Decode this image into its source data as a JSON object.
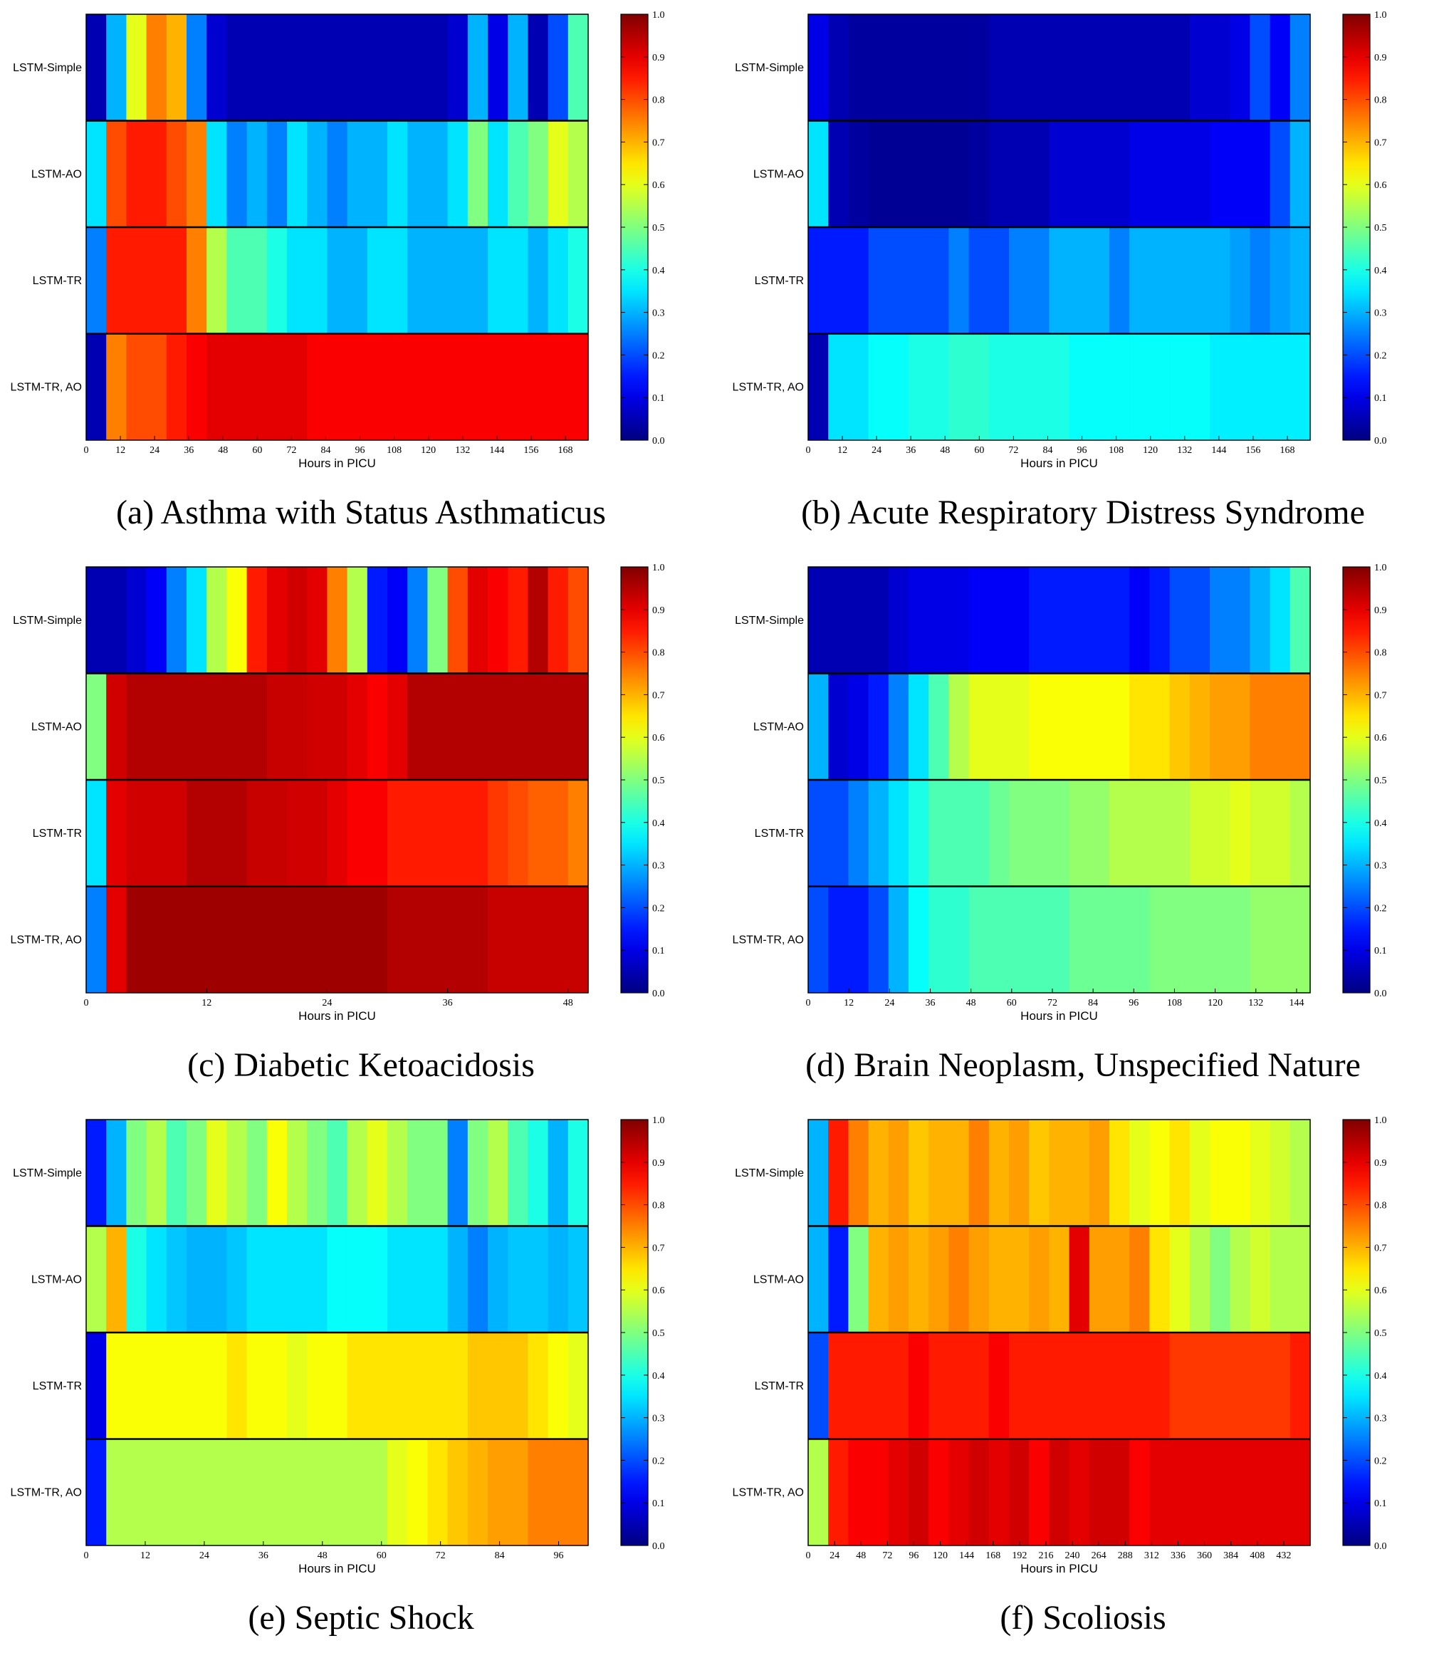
{
  "chart_data": [
    {
      "type": "heatmap",
      "caption": "(a) Asthma with Status Asthmaticus",
      "rows": [
        "LSTM-Simple",
        "LSTM-AO",
        "LSTM-TR",
        "LSTM-TR, AO"
      ],
      "xlabel": "Hours in PICU",
      "xlim": [
        0,
        176
      ],
      "xticks": [
        "0",
        "12",
        "24",
        "36",
        "48",
        "60",
        "72",
        "84",
        "96",
        "108",
        "120",
        "132",
        "144",
        "156",
        "168"
      ],
      "colorbar": {
        "min": 0.0,
        "max": 1.0,
        "ticks": [
          "0.0",
          "0.1",
          "0.2",
          "0.3",
          "0.4",
          "0.5",
          "0.6",
          "0.7",
          "0.8",
          "0.9",
          "1.0"
        ]
      },
      "values": [
        [
          0.05,
          0.3,
          0.6,
          0.75,
          0.7,
          0.25,
          0.08,
          0.05,
          0.05,
          0.05,
          0.05,
          0.05,
          0.05,
          0.05,
          0.05,
          0.05,
          0.05,
          0.05,
          0.08,
          0.3,
          0.1,
          0.3,
          0.05,
          0.2,
          0.45
        ],
        [
          0.35,
          0.8,
          0.85,
          0.85,
          0.8,
          0.75,
          0.35,
          0.25,
          0.3,
          0.25,
          0.35,
          0.3,
          0.25,
          0.3,
          0.3,
          0.35,
          0.3,
          0.3,
          0.35,
          0.5,
          0.35,
          0.45,
          0.5,
          0.6,
          0.55
        ],
        [
          0.25,
          0.85,
          0.85,
          0.85,
          0.85,
          0.75,
          0.55,
          0.45,
          0.45,
          0.4,
          0.35,
          0.35,
          0.3,
          0.3,
          0.35,
          0.35,
          0.3,
          0.3,
          0.3,
          0.3,
          0.35,
          0.35,
          0.3,
          0.35,
          0.4
        ],
        [
          0.05,
          0.75,
          0.8,
          0.8,
          0.85,
          0.88,
          0.9,
          0.9,
          0.9,
          0.9,
          0.9,
          0.88,
          0.88,
          0.88,
          0.88,
          0.88,
          0.88,
          0.88,
          0.88,
          0.88,
          0.88,
          0.88,
          0.88,
          0.88,
          0.88
        ]
      ]
    },
    {
      "type": "heatmap",
      "caption": "(b) Acute Respiratory Distress Syndrome",
      "rows": [
        "LSTM-Simple",
        "LSTM-AO",
        "LSTM-TR",
        "LSTM-TR, AO"
      ],
      "xlabel": "Hours in PICU",
      "xlim": [
        0,
        176
      ],
      "xticks": [
        "0",
        "12",
        "24",
        "36",
        "48",
        "60",
        "72",
        "84",
        "96",
        "108",
        "120",
        "132",
        "144",
        "156",
        "168"
      ],
      "colorbar": {
        "min": 0.0,
        "max": 1.0,
        "ticks": [
          "0.0",
          "0.1",
          "0.2",
          "0.3",
          "0.4",
          "0.5",
          "0.6",
          "0.7",
          "0.8",
          "0.9",
          "1.0"
        ]
      },
      "values": [
        [
          0.1,
          0.05,
          0.03,
          0.03,
          0.03,
          0.03,
          0.03,
          0.03,
          0.03,
          0.05,
          0.05,
          0.05,
          0.05,
          0.05,
          0.05,
          0.05,
          0.05,
          0.05,
          0.05,
          0.08,
          0.08,
          0.1,
          0.2,
          0.12,
          0.25
        ],
        [
          0.35,
          0.05,
          0.03,
          0.02,
          0.02,
          0.02,
          0.02,
          0.02,
          0.03,
          0.05,
          0.05,
          0.05,
          0.08,
          0.08,
          0.08,
          0.08,
          0.1,
          0.1,
          0.1,
          0.1,
          0.12,
          0.12,
          0.12,
          0.2,
          0.3
        ],
        [
          0.15,
          0.15,
          0.15,
          0.2,
          0.2,
          0.2,
          0.2,
          0.25,
          0.2,
          0.2,
          0.25,
          0.25,
          0.3,
          0.3,
          0.3,
          0.25,
          0.3,
          0.3,
          0.3,
          0.3,
          0.3,
          0.28,
          0.25,
          0.28,
          0.3
        ],
        [
          0.05,
          0.35,
          0.35,
          0.38,
          0.38,
          0.4,
          0.4,
          0.42,
          0.42,
          0.4,
          0.4,
          0.4,
          0.4,
          0.38,
          0.38,
          0.38,
          0.38,
          0.38,
          0.38,
          0.38,
          0.36,
          0.36,
          0.36,
          0.36,
          0.36
        ]
      ]
    },
    {
      "type": "heatmap",
      "caption": "(c) Diabetic Ketoacidosis",
      "rows": [
        "LSTM-Simple",
        "LSTM-AO",
        "LSTM-TR",
        "LSTM-TR, AO"
      ],
      "xlabel": "Hours in PICU",
      "xlim": [
        0,
        50
      ],
      "xticks": [
        "0",
        "12",
        "24",
        "36",
        "48"
      ],
      "colorbar": {
        "min": 0.0,
        "max": 1.0,
        "ticks": [
          "0.0",
          "0.1",
          "0.2",
          "0.3",
          "0.4",
          "0.5",
          "0.6",
          "0.7",
          "0.8",
          "0.9",
          "1.0"
        ]
      },
      "values": [
        [
          0.05,
          0.05,
          0.08,
          0.12,
          0.25,
          0.35,
          0.55,
          0.62,
          0.85,
          0.9,
          0.92,
          0.9,
          0.75,
          0.55,
          0.15,
          0.12,
          0.25,
          0.5,
          0.8,
          0.9,
          0.88,
          0.85,
          0.95,
          0.85,
          0.8
        ],
        [
          0.5,
          0.92,
          0.95,
          0.95,
          0.95,
          0.95,
          0.95,
          0.95,
          0.95,
          0.93,
          0.93,
          0.92,
          0.92,
          0.9,
          0.88,
          0.9,
          0.95,
          0.95,
          0.95,
          0.95,
          0.95,
          0.95,
          0.95,
          0.95,
          0.95
        ],
        [
          0.35,
          0.9,
          0.92,
          0.92,
          0.92,
          0.95,
          0.95,
          0.95,
          0.93,
          0.93,
          0.92,
          0.92,
          0.9,
          0.88,
          0.88,
          0.85,
          0.85,
          0.85,
          0.85,
          0.85,
          0.82,
          0.8,
          0.78,
          0.78,
          0.75
        ],
        [
          0.25,
          0.9,
          0.97,
          0.97,
          0.97,
          0.97,
          0.97,
          0.97,
          0.97,
          0.97,
          0.97,
          0.97,
          0.97,
          0.97,
          0.97,
          0.95,
          0.95,
          0.95,
          0.95,
          0.95,
          0.93,
          0.93,
          0.93,
          0.93,
          0.93
        ]
      ]
    },
    {
      "type": "heatmap",
      "caption": "(d) Brain Neoplasm, Unspecified Nature",
      "rows": [
        "LSTM-Simple",
        "LSTM-AO",
        "LSTM-TR",
        "LSTM-TR, AO"
      ],
      "xlabel": "Hours in PICU",
      "xlim": [
        0,
        148
      ],
      "xticks": [
        "0",
        "12",
        "24",
        "36",
        "48",
        "60",
        "72",
        "84",
        "96",
        "108",
        "120",
        "132",
        "144"
      ],
      "colorbar": {
        "min": 0.0,
        "max": 1.0,
        "ticks": [
          "0.0",
          "0.1",
          "0.2",
          "0.3",
          "0.4",
          "0.5",
          "0.6",
          "0.7",
          "0.8",
          "0.9",
          "1.0"
        ]
      },
      "values": [
        [
          0.05,
          0.05,
          0.05,
          0.05,
          0.08,
          0.1,
          0.1,
          0.1,
          0.12,
          0.12,
          0.12,
          0.15,
          0.15,
          0.15,
          0.15,
          0.15,
          0.12,
          0.15,
          0.2,
          0.2,
          0.25,
          0.25,
          0.3,
          0.35,
          0.45
        ],
        [
          0.3,
          0.08,
          0.1,
          0.15,
          0.25,
          0.35,
          0.45,
          0.55,
          0.6,
          0.6,
          0.6,
          0.62,
          0.62,
          0.62,
          0.62,
          0.62,
          0.65,
          0.65,
          0.68,
          0.7,
          0.72,
          0.72,
          0.75,
          0.75,
          0.75
        ],
        [
          0.2,
          0.2,
          0.25,
          0.3,
          0.35,
          0.4,
          0.45,
          0.45,
          0.45,
          0.48,
          0.5,
          0.5,
          0.5,
          0.52,
          0.52,
          0.55,
          0.55,
          0.55,
          0.55,
          0.58,
          0.58,
          0.6,
          0.58,
          0.58,
          0.55
        ],
        [
          0.2,
          0.15,
          0.15,
          0.2,
          0.3,
          0.38,
          0.42,
          0.42,
          0.45,
          0.45,
          0.45,
          0.45,
          0.45,
          0.48,
          0.48,
          0.48,
          0.48,
          0.5,
          0.5,
          0.5,
          0.5,
          0.5,
          0.52,
          0.52,
          0.52
        ]
      ]
    },
    {
      "type": "heatmap",
      "caption": "(e) Septic Shock",
      "rows": [
        "LSTM-Simple",
        "LSTM-AO",
        "LSTM-TR",
        "LSTM-TR, AO"
      ],
      "xlabel": "Hours in PICU",
      "xlim": [
        0,
        102
      ],
      "xticks": [
        "0",
        "12",
        "24",
        "36",
        "48",
        "60",
        "72",
        "84",
        "96"
      ],
      "colorbar": {
        "min": 0.0,
        "max": 1.0,
        "ticks": [
          "0.0",
          "0.1",
          "0.2",
          "0.3",
          "0.4",
          "0.5",
          "0.6",
          "0.7",
          "0.8",
          "0.9",
          "1.0"
        ]
      },
      "values": [
        [
          0.15,
          0.3,
          0.5,
          0.55,
          0.45,
          0.5,
          0.6,
          0.55,
          0.5,
          0.62,
          0.55,
          0.5,
          0.45,
          0.55,
          0.6,
          0.55,
          0.5,
          0.5,
          0.25,
          0.5,
          0.55,
          0.45,
          0.4,
          0.3,
          0.4
        ],
        [
          0.55,
          0.7,
          0.4,
          0.35,
          0.32,
          0.3,
          0.3,
          0.32,
          0.35,
          0.35,
          0.35,
          0.35,
          0.38,
          0.38,
          0.38,
          0.35,
          0.35,
          0.35,
          0.3,
          0.25,
          0.3,
          0.32,
          0.32,
          0.3,
          0.32
        ],
        [
          0.1,
          0.62,
          0.62,
          0.62,
          0.62,
          0.62,
          0.62,
          0.65,
          0.62,
          0.62,
          0.6,
          0.62,
          0.62,
          0.65,
          0.65,
          0.65,
          0.65,
          0.65,
          0.65,
          0.68,
          0.68,
          0.68,
          0.65,
          0.62,
          0.6
        ],
        [
          0.15,
          0.55,
          0.55,
          0.55,
          0.55,
          0.55,
          0.55,
          0.55,
          0.55,
          0.55,
          0.55,
          0.55,
          0.55,
          0.55,
          0.55,
          0.6,
          0.62,
          0.65,
          0.68,
          0.7,
          0.72,
          0.72,
          0.75,
          0.75,
          0.75
        ]
      ]
    },
    {
      "type": "heatmap",
      "caption": "(f) Scoliosis",
      "rows": [
        "LSTM-Simple",
        "LSTM-AO",
        "LSTM-TR",
        "LSTM-TR, AO"
      ],
      "xlabel": "Hours in PICU",
      "xlim": [
        0,
        456
      ],
      "xticks": [
        "0",
        "24",
        "48",
        "72",
        "96",
        "120",
        "144",
        "168",
        "192",
        "216",
        "240",
        "264",
        "288",
        "312",
        "336",
        "360",
        "384",
        "408",
        "432"
      ],
      "colorbar": {
        "min": 0.0,
        "max": 1.0,
        "ticks": [
          "0.0",
          "0.1",
          "0.2",
          "0.3",
          "0.4",
          "0.5",
          "0.6",
          "0.7",
          "0.8",
          "0.9",
          "1.0"
        ]
      },
      "values": [
        [
          0.3,
          0.85,
          0.75,
          0.7,
          0.72,
          0.68,
          0.7,
          0.7,
          0.75,
          0.7,
          0.72,
          0.68,
          0.7,
          0.7,
          0.72,
          0.65,
          0.6,
          0.62,
          0.65,
          0.6,
          0.62,
          0.62,
          0.6,
          0.58,
          0.55
        ],
        [
          0.3,
          0.15,
          0.5,
          0.7,
          0.72,
          0.7,
          0.72,
          0.75,
          0.72,
          0.7,
          0.7,
          0.72,
          0.7,
          0.9,
          0.72,
          0.72,
          0.75,
          0.65,
          0.6,
          0.55,
          0.5,
          0.55,
          0.58,
          0.55,
          0.55
        ],
        [
          0.2,
          0.85,
          0.85,
          0.85,
          0.85,
          0.88,
          0.85,
          0.85,
          0.85,
          0.88,
          0.85,
          0.85,
          0.85,
          0.85,
          0.85,
          0.85,
          0.85,
          0.85,
          0.82,
          0.82,
          0.82,
          0.82,
          0.82,
          0.82,
          0.85
        ],
        [
          0.55,
          0.85,
          0.88,
          0.88,
          0.9,
          0.92,
          0.88,
          0.9,
          0.92,
          0.9,
          0.92,
          0.88,
          0.92,
          0.9,
          0.92,
          0.92,
          0.88,
          0.9,
          0.9,
          0.9,
          0.9,
          0.9,
          0.9,
          0.9,
          0.9
        ]
      ]
    }
  ]
}
